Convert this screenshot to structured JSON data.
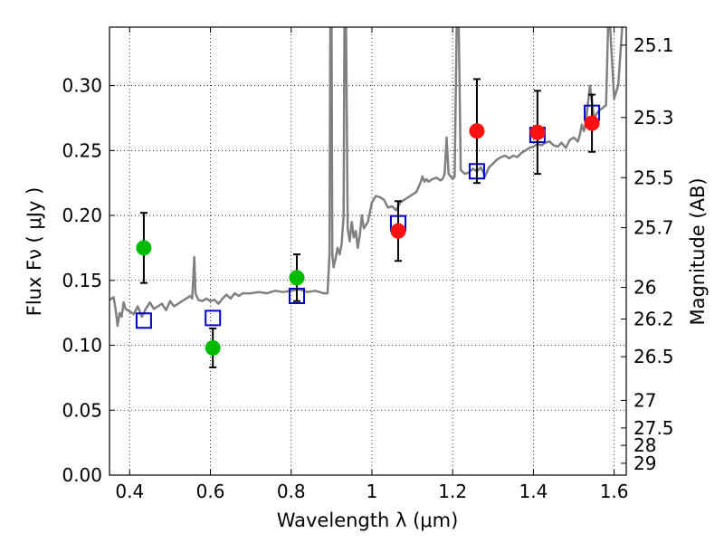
{
  "chart_data": {
    "type": "scatter",
    "xlabel": "Wavelength  λ (μm)",
    "ylabel_left": "Flux  Fν  ( μJy )",
    "ylabel_right": "Magnitude (AB)",
    "xlim": [
      0.35,
      1.63
    ],
    "ylim": [
      0.0,
      0.345
    ],
    "grid": true,
    "x_ticks": [
      0.4,
      0.6,
      0.8,
      1.0,
      1.2,
      1.4,
      1.6
    ],
    "x_tick_labels": [
      "0.4",
      "0.6",
      "0.8",
      "1",
      "1.2",
      "1.4",
      "1.6"
    ],
    "y_ticks": [
      0.0,
      0.05,
      0.1,
      0.15,
      0.2,
      0.25,
      0.3
    ],
    "y_tick_labels": [
      "0.00",
      "0.05",
      "0.10",
      "0.15",
      "0.20",
      "0.25",
      "0.30"
    ],
    "mag_ticks": [
      25.1,
      25.3,
      25.5,
      25.7,
      26,
      26.2,
      26.5,
      27,
      27.5,
      28,
      29
    ],
    "mag_tick_labels": [
      "25.1",
      "25.3",
      "25.5",
      "25.7",
      "26",
      "26.2",
      "26.5",
      "27",
      "27.5",
      "28",
      "29"
    ],
    "colors": {
      "model_spectrum": "#808080",
      "optical_points": "#00bb00",
      "nir_points": "#ff1111",
      "model_photometry": "#0000cc",
      "error_bars": "#000000"
    },
    "observed_optical": [
      {
        "x": 0.435,
        "y": 0.175,
        "err": 0.027
      },
      {
        "x": 0.606,
        "y": 0.098,
        "err": 0.015
      },
      {
        "x": 0.814,
        "y": 0.152,
        "err": 0.018
      }
    ],
    "observed_nir": [
      {
        "x": 1.065,
        "y": 0.188,
        "err": 0.023
      },
      {
        "x": 1.26,
        "y": 0.265,
        "err": 0.04
      },
      {
        "x": 1.41,
        "y": 0.264,
        "err": 0.032
      },
      {
        "x": 1.545,
        "y": 0.271,
        "err": 0.022
      }
    ],
    "model_photometry": [
      {
        "x": 0.435,
        "y": 0.119
      },
      {
        "x": 0.606,
        "y": 0.121
      },
      {
        "x": 0.814,
        "y": 0.138
      },
      {
        "x": 1.065,
        "y": 0.194
      },
      {
        "x": 1.26,
        "y": 0.234
      },
      {
        "x": 1.41,
        "y": 0.262
      },
      {
        "x": 1.545,
        "y": 0.279
      }
    ],
    "model_spectrum": [
      [
        0.35,
        0.135
      ],
      [
        0.36,
        0.137
      ],
      [
        0.365,
        0.128
      ],
      [
        0.37,
        0.115
      ],
      [
        0.375,
        0.125
      ],
      [
        0.38,
        0.122
      ],
      [
        0.385,
        0.133
      ],
      [
        0.39,
        0.128
      ],
      [
        0.4,
        0.126
      ],
      [
        0.41,
        0.124
      ],
      [
        0.42,
        0.13
      ],
      [
        0.43,
        0.122
      ],
      [
        0.44,
        0.128
      ],
      [
        0.45,
        0.133
      ],
      [
        0.46,
        0.128
      ],
      [
        0.47,
        0.13
      ],
      [
        0.48,
        0.132
      ],
      [
        0.49,
        0.127
      ],
      [
        0.5,
        0.134
      ],
      [
        0.51,
        0.13
      ],
      [
        0.52,
        0.132
      ],
      [
        0.53,
        0.134
      ],
      [
        0.54,
        0.136
      ],
      [
        0.55,
        0.138
      ],
      [
        0.555,
        0.136
      ],
      [
        0.56,
        0.168
      ],
      [
        0.563,
        0.14
      ],
      [
        0.57,
        0.135
      ],
      [
        0.58,
        0.134
      ],
      [
        0.59,
        0.136
      ],
      [
        0.6,
        0.134
      ],
      [
        0.61,
        0.135
      ],
      [
        0.62,
        0.132
      ],
      [
        0.63,
        0.136
      ],
      [
        0.64,
        0.139
      ],
      [
        0.65,
        0.136
      ],
      [
        0.66,
        0.14
      ],
      [
        0.67,
        0.138
      ],
      [
        0.68,
        0.14
      ],
      [
        0.7,
        0.14
      ],
      [
        0.72,
        0.141
      ],
      [
        0.74,
        0.14
      ],
      [
        0.76,
        0.142
      ],
      [
        0.78,
        0.141
      ],
      [
        0.8,
        0.142
      ],
      [
        0.82,
        0.143
      ],
      [
        0.84,
        0.141
      ],
      [
        0.86,
        0.142
      ],
      [
        0.88,
        0.14
      ],
      [
        0.89,
        0.14
      ],
      [
        0.895,
        0.17
      ],
      [
        0.897,
        0.345
      ],
      [
        0.9,
        0.345
      ],
      [
        0.902,
        0.17
      ],
      [
        0.905,
        0.16
      ],
      [
        0.91,
        0.167
      ],
      [
        0.915,
        0.175
      ],
      [
        0.92,
        0.17
      ],
      [
        0.925,
        0.178
      ],
      [
        0.93,
        0.2
      ],
      [
        0.932,
        0.345
      ],
      [
        0.936,
        0.345
      ],
      [
        0.94,
        0.19
      ],
      [
        0.945,
        0.18
      ],
      [
        0.95,
        0.195
      ],
      [
        0.955,
        0.183
      ],
      [
        0.96,
        0.188
      ],
      [
        0.965,
        0.175
      ],
      [
        0.97,
        0.185
      ],
      [
        0.975,
        0.2
      ],
      [
        0.98,
        0.19
      ],
      [
        0.99,
        0.195
      ],
      [
        1.0,
        0.21
      ],
      [
        1.01,
        0.215
      ],
      [
        1.02,
        0.214
      ],
      [
        1.03,
        0.212
      ],
      [
        1.04,
        0.206
      ],
      [
        1.05,
        0.207
      ],
      [
        1.06,
        0.204
      ],
      [
        1.07,
        0.21
      ],
      [
        1.08,
        0.212
      ],
      [
        1.09,
        0.214
      ],
      [
        1.1,
        0.216
      ],
      [
        1.11,
        0.218
      ],
      [
        1.12,
        0.225
      ],
      [
        1.125,
        0.23
      ],
      [
        1.13,
        0.226
      ],
      [
        1.135,
        0.228
      ],
      [
        1.14,
        0.226
      ],
      [
        1.15,
        0.228
      ],
      [
        1.16,
        0.229
      ],
      [
        1.17,
        0.227
      ],
      [
        1.175,
        0.228
      ],
      [
        1.18,
        0.232
      ],
      [
        1.185,
        0.26
      ],
      [
        1.19,
        0.232
      ],
      [
        1.2,
        0.228
      ],
      [
        1.205,
        0.23
      ],
      [
        1.21,
        0.345
      ],
      [
        1.215,
        0.345
      ],
      [
        1.22,
        0.235
      ],
      [
        1.23,
        0.232
      ],
      [
        1.24,
        0.233
      ],
      [
        1.25,
        0.236
      ],
      [
        1.26,
        0.234
      ],
      [
        1.27,
        0.237
      ],
      [
        1.28,
        0.23
      ],
      [
        1.29,
        0.237
      ],
      [
        1.3,
        0.24
      ],
      [
        1.31,
        0.243
      ],
      [
        1.32,
        0.245
      ],
      [
        1.33,
        0.246
      ],
      [
        1.34,
        0.244
      ],
      [
        1.35,
        0.246
      ],
      [
        1.36,
        0.245
      ],
      [
        1.37,
        0.248
      ],
      [
        1.38,
        0.25
      ],
      [
        1.39,
        0.252
      ],
      [
        1.4,
        0.253
      ],
      [
        1.41,
        0.255
      ],
      [
        1.42,
        0.254
      ],
      [
        1.43,
        0.256
      ],
      [
        1.44,
        0.257
      ],
      [
        1.45,
        0.254
      ],
      [
        1.46,
        0.253
      ],
      [
        1.47,
        0.256
      ],
      [
        1.48,
        0.252
      ],
      [
        1.49,
        0.258
      ],
      [
        1.5,
        0.26
      ],
      [
        1.51,
        0.257
      ],
      [
        1.515,
        0.262
      ],
      [
        1.52,
        0.27
      ],
      [
        1.525,
        0.265
      ],
      [
        1.53,
        0.272
      ],
      [
        1.54,
        0.3
      ],
      [
        1.55,
        0.275
      ],
      [
        1.56,
        0.28
      ],
      [
        1.58,
        0.285
      ],
      [
        1.585,
        0.345
      ],
      [
        1.59,
        0.345
      ],
      [
        1.6,
        0.29
      ],
      [
        1.61,
        0.3
      ],
      [
        1.62,
        0.345
      ]
    ]
  }
}
